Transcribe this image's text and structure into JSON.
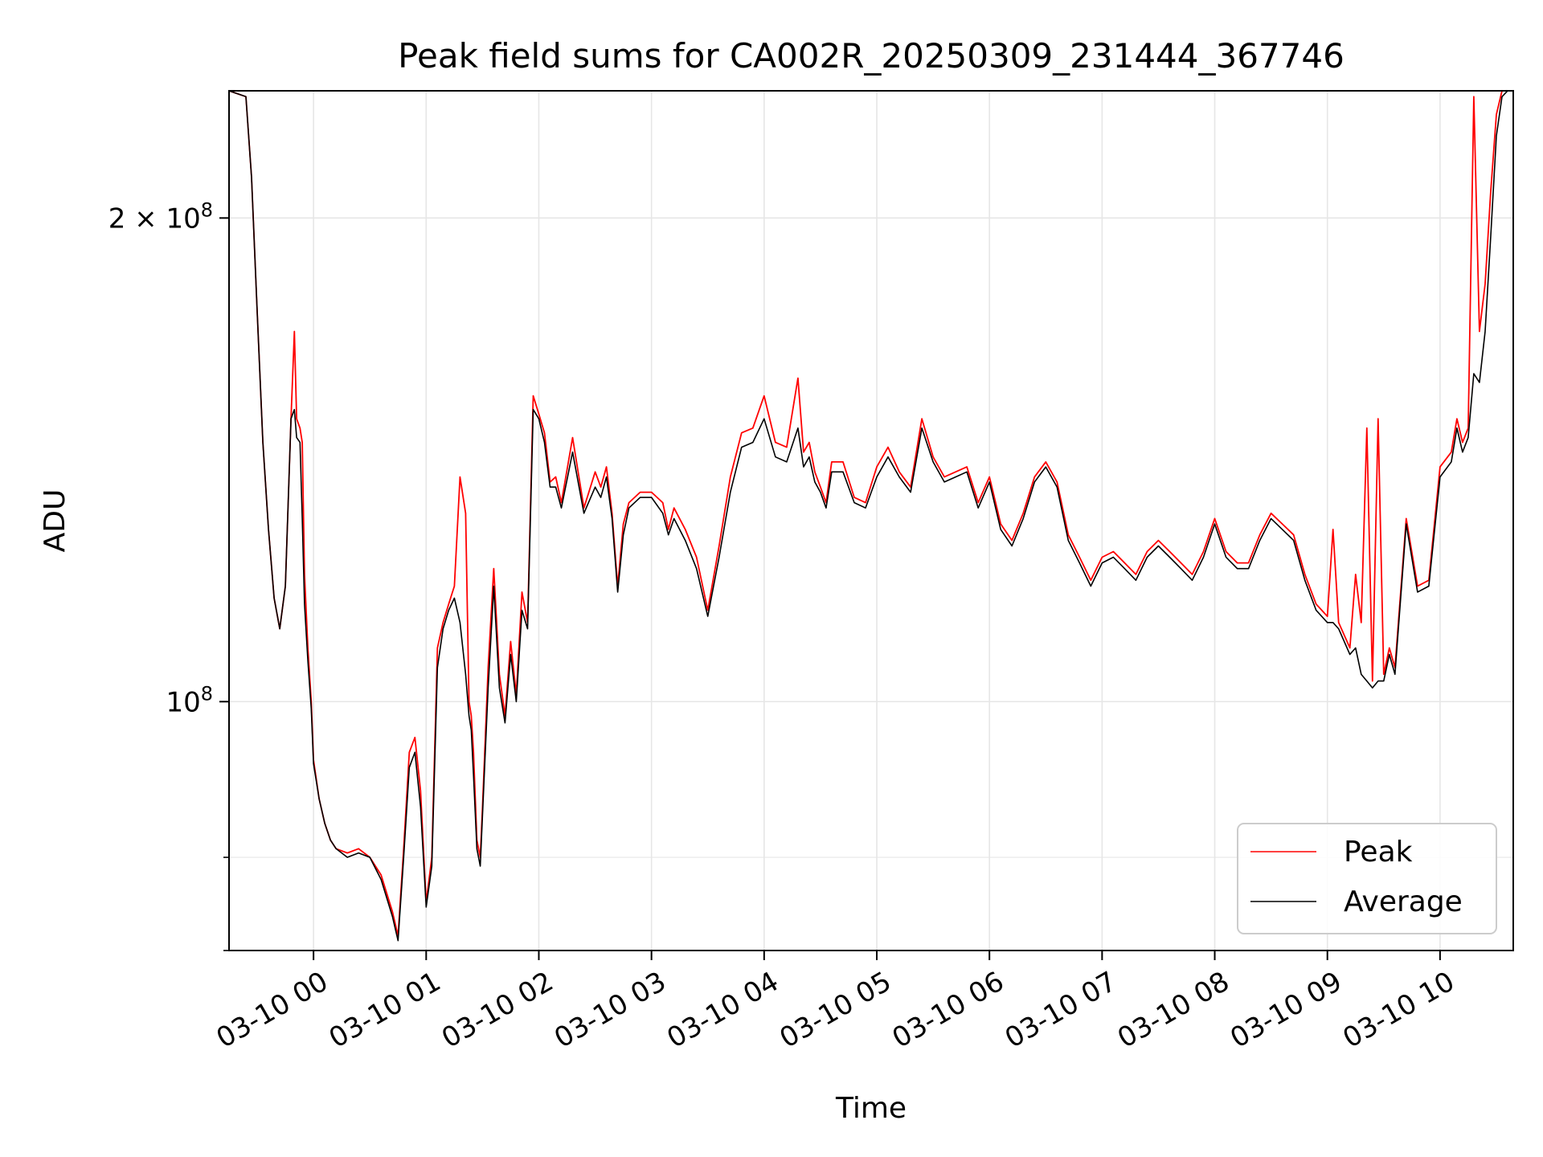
{
  "chart_data": {
    "type": "line",
    "title": "Peak field sums for CA002R_20250309_231444_367746",
    "xlabel": "Time",
    "ylabel": "ADU",
    "y_scale": "log",
    "grid": true,
    "legend_position": "lower-right",
    "x_tick_labels": [
      "03-10 00",
      "03-10 01",
      "03-10 02",
      "03-10 03",
      "03-10 04",
      "03-10 05",
      "03-10 06",
      "03-10 07",
      "03-10 08",
      "03-10 09",
      "03-10 10"
    ],
    "x_ticks_hours": [
      0,
      1,
      2,
      3,
      4,
      5,
      6,
      7,
      8,
      9,
      10
    ],
    "xlim_hours": [
      -0.75,
      10.65
    ],
    "y_tick_labels": [
      {
        "value": 100000000,
        "base": "10",
        "exp": "8",
        "mantissa": ""
      },
      {
        "value": 200000000,
        "base": "10",
        "exp": "8",
        "mantissa": "2 × "
      }
    ],
    "y_minor_ticks": [
      70000000,
      80000000
    ],
    "ylim": [
      70000000,
      240000000
    ],
    "x_unit": "hours after 03-10 00:00",
    "series": [
      {
        "name": "Peak",
        "color": "#ff0000",
        "x": [
          -0.75,
          -0.6,
          -0.55,
          -0.5,
          -0.45,
          -0.4,
          -0.35,
          -0.3,
          -0.25,
          -0.2,
          -0.17,
          -0.15,
          -0.12,
          -0.1,
          -0.08,
          -0.05,
          -0.02,
          0.0,
          0.05,
          0.1,
          0.15,
          0.2,
          0.3,
          0.4,
          0.5,
          0.6,
          0.7,
          0.75,
          0.8,
          0.85,
          0.9,
          0.95,
          1.0,
          1.05,
          1.1,
          1.15,
          1.2,
          1.25,
          1.3,
          1.35,
          1.38,
          1.4,
          1.42,
          1.45,
          1.48,
          1.5,
          1.55,
          1.6,
          1.65,
          1.7,
          1.75,
          1.8,
          1.85,
          1.9,
          1.95,
          2.0,
          2.05,
          2.1,
          2.15,
          2.2,
          2.3,
          2.4,
          2.5,
          2.55,
          2.6,
          2.65,
          2.7,
          2.75,
          2.8,
          2.9,
          3.0,
          3.1,
          3.15,
          3.2,
          3.3,
          3.4,
          3.5,
          3.6,
          3.7,
          3.8,
          3.9,
          4.0,
          4.1,
          4.2,
          4.3,
          4.35,
          4.4,
          4.45,
          4.5,
          4.55,
          4.6,
          4.7,
          4.8,
          4.9,
          5.0,
          5.1,
          5.2,
          5.3,
          5.4,
          5.5,
          5.6,
          5.7,
          5.8,
          5.9,
          6.0,
          6.1,
          6.2,
          6.3,
          6.4,
          6.5,
          6.6,
          6.7,
          6.8,
          6.9,
          7.0,
          7.1,
          7.2,
          7.3,
          7.4,
          7.5,
          7.6,
          7.7,
          7.8,
          7.9,
          8.0,
          8.1,
          8.2,
          8.3,
          8.4,
          8.5,
          8.6,
          8.7,
          8.8,
          8.9,
          9.0,
          9.05,
          9.1,
          9.2,
          9.25,
          9.3,
          9.35,
          9.4,
          9.45,
          9.5,
          9.55,
          9.6,
          9.7,
          9.8,
          9.9,
          10.0,
          10.1,
          10.15,
          10.2,
          10.25,
          10.3,
          10.35,
          10.4,
          10.45,
          10.5,
          10.55,
          10.6,
          10.65
        ],
        "y": [
          240000000,
          238000000,
          212000000,
          175000000,
          145000000,
          128000000,
          116000000,
          111000000,
          118000000,
          150000000,
          170000000,
          150000000,
          148000000,
          145000000,
          120000000,
          108000000,
          100000000,
          92000000,
          87000000,
          84000000,
          82000000,
          81000000,
          80500000,
          81000000,
          80000000,
          78000000,
          74000000,
          71500000,
          81000000,
          93000000,
          95000000,
          88000000,
          75000000,
          80000000,
          108000000,
          112000000,
          115000000,
          118000000,
          138000000,
          131000000,
          100000000,
          98000000,
          93000000,
          82000000,
          80000000,
          86000000,
          105000000,
          121000000,
          104000000,
          98000000,
          109000000,
          101000000,
          117000000,
          112000000,
          155000000,
          151000000,
          147000000,
          137000000,
          138000000,
          133000000,
          146000000,
          132000000,
          139000000,
          136000000,
          140000000,
          131000000,
          118000000,
          129000000,
          133000000,
          135000000,
          135000000,
          133000000,
          128000000,
          132000000,
          128000000,
          123000000,
          114000000,
          125000000,
          138000000,
          147000000,
          148000000,
          155000000,
          145000000,
          144000000,
          159000000,
          143000000,
          145000000,
          139000000,
          136000000,
          133000000,
          141000000,
          141000000,
          134000000,
          133000000,
          140000000,
          144000000,
          139000000,
          136000000,
          150000000,
          142000000,
          138000000,
          139000000,
          140000000,
          133000000,
          138000000,
          129000000,
          126000000,
          131000000,
          138000000,
          141000000,
          137000000,
          127000000,
          123000000,
          119000000,
          123000000,
          124000000,
          122000000,
          120000000,
          124000000,
          126000000,
          124000000,
          122000000,
          120000000,
          124000000,
          130000000,
          124000000,
          122000000,
          122000000,
          127000000,
          131000000,
          129000000,
          127000000,
          120000000,
          115000000,
          113000000,
          128000000,
          112000000,
          108000000,
          120000000,
          112000000,
          148000000,
          103000000,
          150000000,
          104000000,
          108000000,
          105000000,
          130000000,
          118000000,
          119000000,
          140000000,
          143000000,
          150000000,
          145000000,
          148000000,
          238000000,
          170000000,
          182000000,
          208000000,
          232000000,
          240000000,
          240000000,
          240000000
        ]
      },
      {
        "name": "Average",
        "color": "#000000",
        "x": [
          -0.75,
          -0.6,
          -0.55,
          -0.5,
          -0.45,
          -0.4,
          -0.35,
          -0.3,
          -0.25,
          -0.2,
          -0.17,
          -0.15,
          -0.12,
          -0.1,
          -0.08,
          -0.05,
          -0.02,
          0.0,
          0.05,
          0.1,
          0.15,
          0.2,
          0.3,
          0.4,
          0.5,
          0.6,
          0.7,
          0.75,
          0.8,
          0.85,
          0.9,
          0.95,
          1.0,
          1.05,
          1.1,
          1.15,
          1.2,
          1.25,
          1.3,
          1.35,
          1.38,
          1.4,
          1.42,
          1.45,
          1.48,
          1.5,
          1.55,
          1.6,
          1.65,
          1.7,
          1.75,
          1.8,
          1.85,
          1.9,
          1.95,
          2.0,
          2.05,
          2.1,
          2.15,
          2.2,
          2.3,
          2.4,
          2.5,
          2.55,
          2.6,
          2.65,
          2.7,
          2.75,
          2.8,
          2.9,
          3.0,
          3.1,
          3.15,
          3.2,
          3.3,
          3.4,
          3.5,
          3.6,
          3.7,
          3.8,
          3.9,
          4.0,
          4.1,
          4.2,
          4.3,
          4.35,
          4.4,
          4.45,
          4.5,
          4.55,
          4.6,
          4.7,
          4.8,
          4.9,
          5.0,
          5.1,
          5.2,
          5.3,
          5.4,
          5.5,
          5.6,
          5.7,
          5.8,
          5.9,
          6.0,
          6.1,
          6.2,
          6.3,
          6.4,
          6.5,
          6.6,
          6.7,
          6.8,
          6.9,
          7.0,
          7.1,
          7.2,
          7.3,
          7.4,
          7.5,
          7.6,
          7.7,
          7.8,
          7.9,
          8.0,
          8.1,
          8.2,
          8.3,
          8.4,
          8.5,
          8.6,
          8.7,
          8.8,
          8.9,
          9.0,
          9.05,
          9.1,
          9.2,
          9.25,
          9.3,
          9.35,
          9.4,
          9.45,
          9.5,
          9.55,
          9.6,
          9.7,
          9.8,
          9.9,
          10.0,
          10.1,
          10.15,
          10.2,
          10.25,
          10.3,
          10.35,
          10.4,
          10.45,
          10.5,
          10.55,
          10.6,
          10.65
        ],
        "y": [
          240000000,
          238000000,
          212000000,
          175000000,
          145000000,
          128000000,
          116000000,
          111000000,
          118000000,
          150000000,
          152000000,
          146000000,
          145000000,
          130000000,
          115000000,
          106000000,
          99000000,
          91500000,
          87000000,
          84000000,
          82000000,
          81000000,
          80000000,
          80500000,
          80000000,
          77500000,
          73500000,
          71000000,
          80000000,
          91000000,
          93000000,
          86000000,
          74500000,
          79000000,
          105000000,
          111000000,
          114000000,
          116000000,
          112000000,
          104000000,
          98000000,
          96000000,
          90000000,
          81000000,
          79000000,
          85000000,
          102000000,
          118000000,
          102000000,
          97000000,
          107000000,
          100000000,
          114000000,
          111000000,
          152000000,
          150000000,
          145000000,
          136000000,
          136000000,
          132000000,
          143000000,
          131000000,
          136000000,
          134000000,
          138000000,
          130000000,
          117000000,
          127000000,
          132000000,
          134000000,
          134000000,
          131000000,
          127000000,
          130000000,
          126000000,
          121000000,
          113000000,
          123000000,
          135000000,
          144000000,
          145000000,
          150000000,
          142000000,
          141000000,
          148000000,
          140000000,
          142000000,
          137000000,
          135000000,
          132000000,
          139000000,
          139000000,
          133000000,
          132000000,
          138000000,
          142000000,
          138000000,
          135000000,
          148000000,
          141000000,
          137000000,
          138000000,
          139000000,
          132000000,
          137000000,
          128000000,
          125000000,
          130000000,
          137000000,
          140000000,
          136000000,
          126000000,
          122000000,
          118000000,
          122000000,
          123000000,
          121000000,
          119000000,
          123000000,
          125000000,
          123000000,
          121000000,
          119000000,
          123000000,
          129000000,
          123000000,
          121000000,
          121000000,
          126000000,
          130000000,
          128000000,
          126000000,
          119000000,
          114000000,
          112000000,
          112000000,
          111000000,
          107000000,
          108000000,
          104000000,
          103000000,
          102000000,
          103000000,
          103000000,
          107000000,
          104000000,
          129000000,
          117000000,
          118000000,
          138000000,
          141000000,
          148000000,
          143000000,
          146000000,
          160000000,
          158000000,
          170000000,
          195000000,
          225000000,
          238000000,
          240000000,
          240000000
        ]
      }
    ]
  }
}
